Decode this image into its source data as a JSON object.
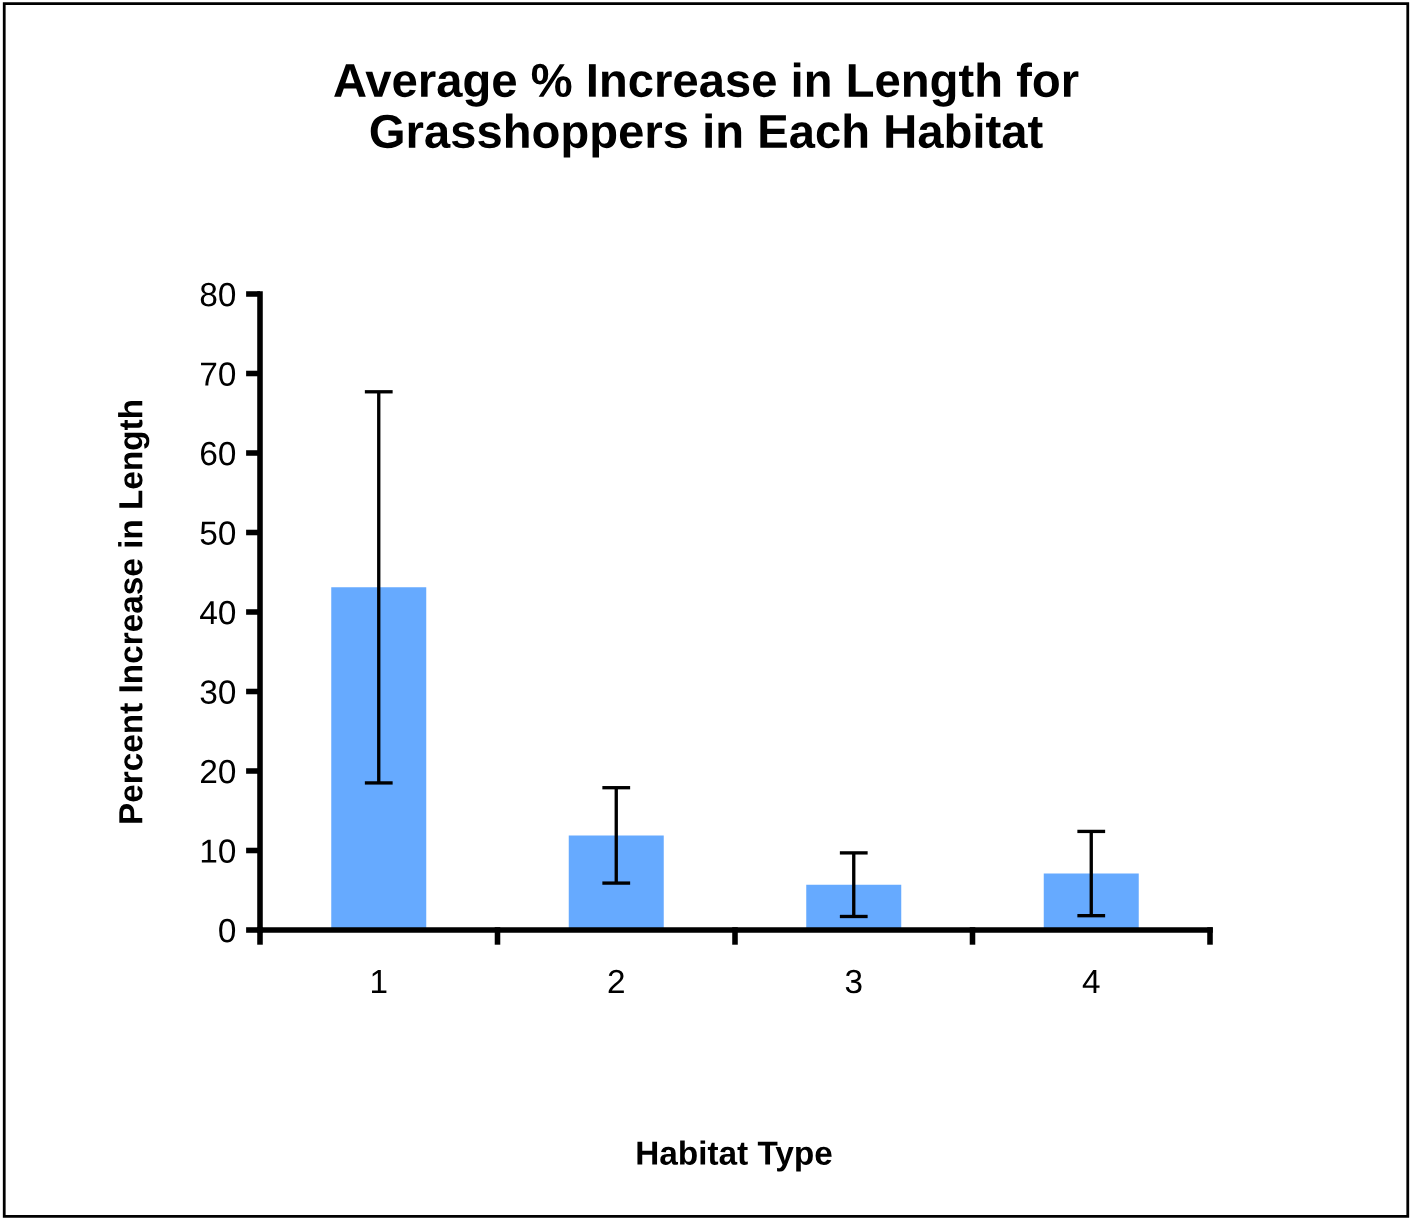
{
  "chart_data": {
    "type": "bar",
    "title": "Average % Increase in Length for\nGrasshoppers in Each Habitat",
    "xlabel": "Habitat Type",
    "ylabel": "Percent Increase in Length",
    "categories": [
      "1",
      "2",
      "3",
      "4"
    ],
    "values": [
      43.1,
      11.9,
      5.7,
      7.1
    ],
    "errors": [
      24.6,
      6,
      4,
      5.3
    ],
    "color": "#66aaff",
    "ylim": [
      0,
      80
    ],
    "yticks": [
      0,
      10,
      20,
      30,
      40,
      50,
      60,
      70,
      80
    ],
    "grid": false,
    "legend": false
  }
}
